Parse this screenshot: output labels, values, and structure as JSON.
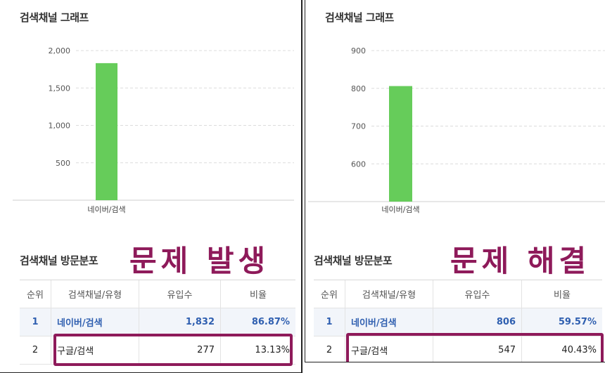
{
  "panels": [
    {
      "chart_section_title": "검색채널 그래프",
      "dist_section_title": "검색채널 방문분포",
      "overlay_text": "문제 발생",
      "table": {
        "headers": [
          "순위",
          "검색채널/유형",
          "유입수",
          "비율"
        ],
        "rows": [
          {
            "rank": "1",
            "channel": "네이버/검색",
            "inflow": "1,832",
            "ratio": "86.87%"
          },
          {
            "rank": "2",
            "channel": "구글/검색",
            "inflow": "277",
            "ratio": "13.13%"
          }
        ]
      }
    },
    {
      "chart_section_title": "검색채널 그래프",
      "dist_section_title": "검색채널 방문분포",
      "overlay_text": "문제 해결",
      "table": {
        "headers": [
          "순위",
          "검색채널/유형",
          "유입수",
          "비율"
        ],
        "rows": [
          {
            "rank": "1",
            "channel": "네이버/검색",
            "inflow": "806",
            "ratio": "59.57%"
          },
          {
            "rank": "2",
            "channel": "구글/검색",
            "inflow": "547",
            "ratio": "40.43%"
          }
        ]
      }
    }
  ],
  "chart_data": [
    {
      "type": "bar",
      "categories": [
        "네이버/검색"
      ],
      "values": [
        1832
      ],
      "yticks": [
        "500",
        "1,000",
        "1,500",
        "2,000"
      ],
      "ylim": [
        0,
        2000
      ],
      "color": "#66cc5a",
      "grid": true
    },
    {
      "type": "bar",
      "categories": [
        "네이버/검색"
      ],
      "values": [
        806
      ],
      "yticks": [
        "600",
        "700",
        "800",
        "900"
      ],
      "ylim": [
        500,
        900
      ],
      "color": "#66cc5a",
      "grid": true
    }
  ],
  "colors": {
    "accent": "#8e1a5a",
    "bar": "#66cc5a",
    "link": "#2f5fb0"
  }
}
